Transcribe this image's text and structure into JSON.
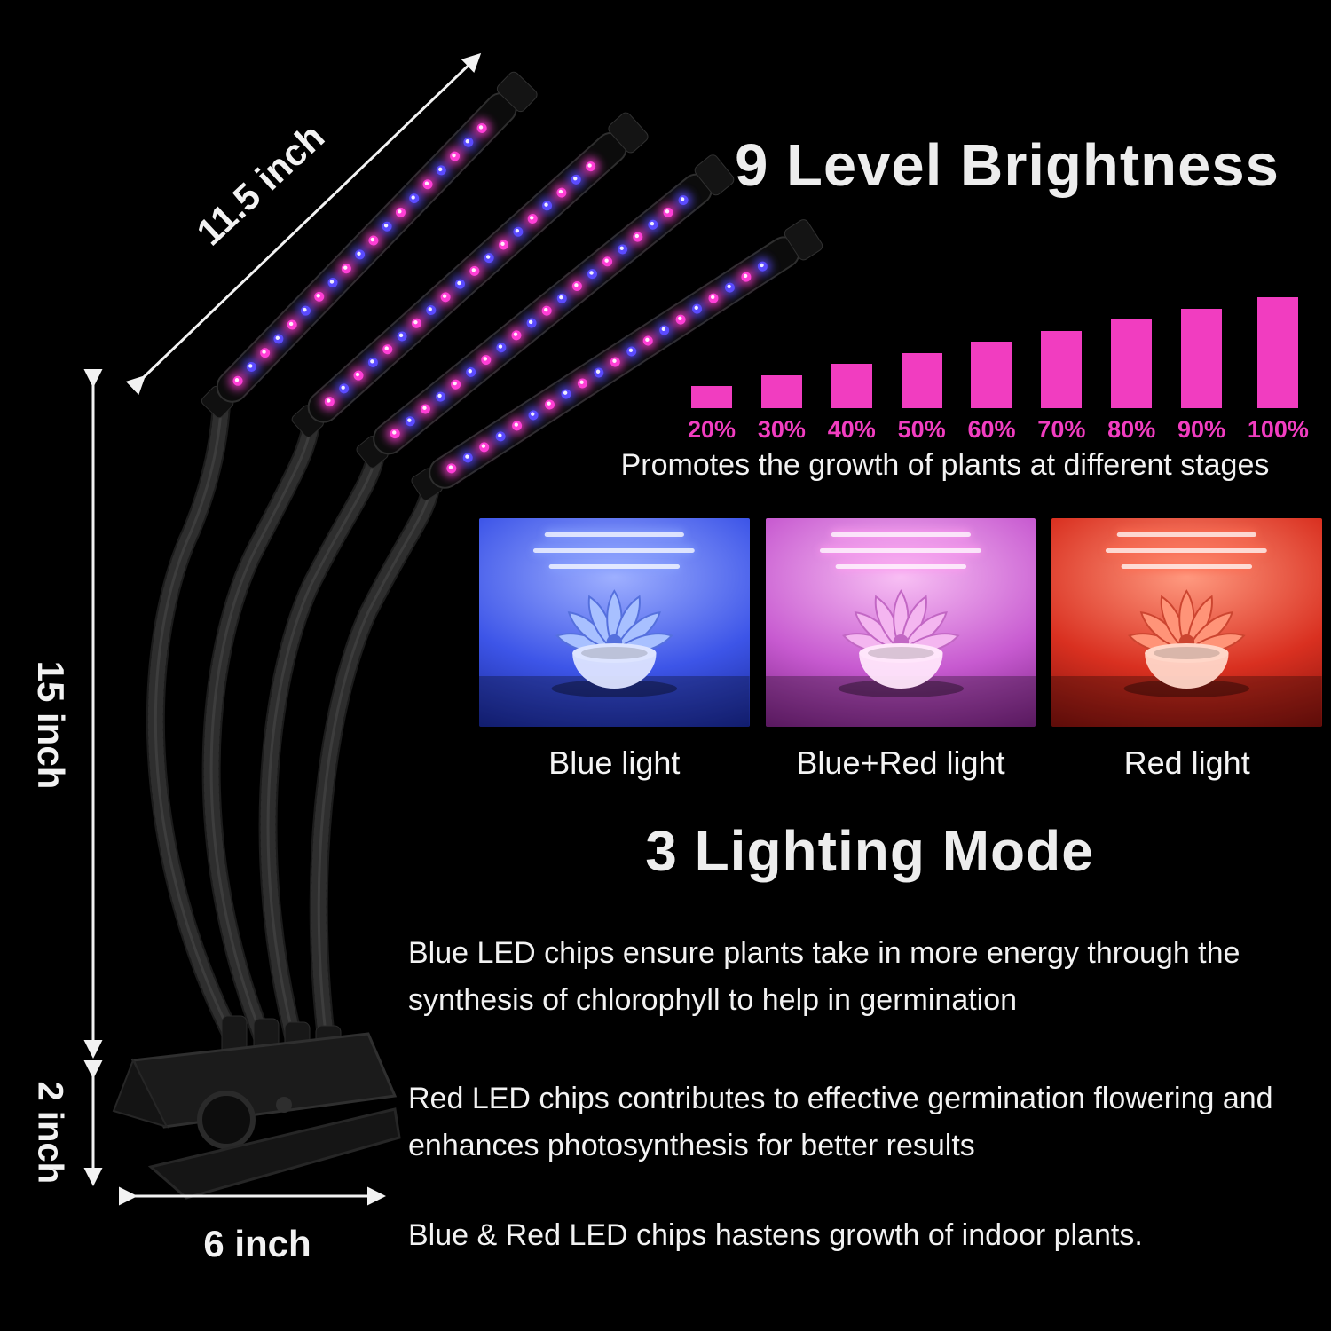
{
  "dimensions": {
    "tube_length": "11.5 inch",
    "gooseneck_height": "15 inch",
    "clip_height": "2 inch",
    "base_width": "6 inch"
  },
  "product": {
    "led_pink": "#ff3fd6",
    "led_blue": "#5b4bff"
  },
  "brightness": {
    "title": "9 Level Brightness",
    "subtitle": "Promotes the growth of plants at different stages"
  },
  "chart_data": {
    "type": "bar",
    "title": "9 Level Brightness",
    "categories": [
      "20%",
      "30%",
      "40%",
      "50%",
      "60%",
      "70%",
      "80%",
      "90%",
      "100%"
    ],
    "values": [
      20,
      30,
      40,
      50,
      60,
      70,
      80,
      90,
      100
    ],
    "ylim": [
      0,
      100
    ],
    "bar_color": "#f13dc0",
    "label_color": "#f13dc0",
    "grid": false,
    "legend": false
  },
  "lighting_modes": {
    "title": "3 Lighting Mode",
    "modes": [
      {
        "label": "Blue light",
        "light": "#86a0ff",
        "bg_top": "#9fb0ff",
        "bg_mid": "#3d55e8",
        "bg_bottom": "#0a1678",
        "plant": "#a8c0ff",
        "plant_dark": "#5570dd",
        "bowl": "#dde4ff"
      },
      {
        "label": "Blue+Red light",
        "light": "#ff9af0",
        "bg_top": "#f8c0f4",
        "bg_mid": "#c75ad0",
        "bg_bottom": "#5e0c66",
        "plant": "#f4b6f0",
        "plant_dark": "#c267c4",
        "bowl": "#ffe6fb"
      },
      {
        "label": "Red light",
        "light": "#ff6a50",
        "bg_top": "#ff9a80",
        "bg_mid": "#d93020",
        "bg_bottom": "#600505",
        "plant": "#ff9478",
        "plant_dark": "#cc4530",
        "bowl": "#ffd6c8"
      }
    ]
  },
  "descriptions": [
    "Blue LED chips ensure plants take in more energy through the synthesis of chlorophyll to help in germination",
    "Red LED chips contributes to effective germination flowering and enhances photosynthesis for better results",
    "Blue & Red LED chips hastens growth of indoor plants."
  ]
}
